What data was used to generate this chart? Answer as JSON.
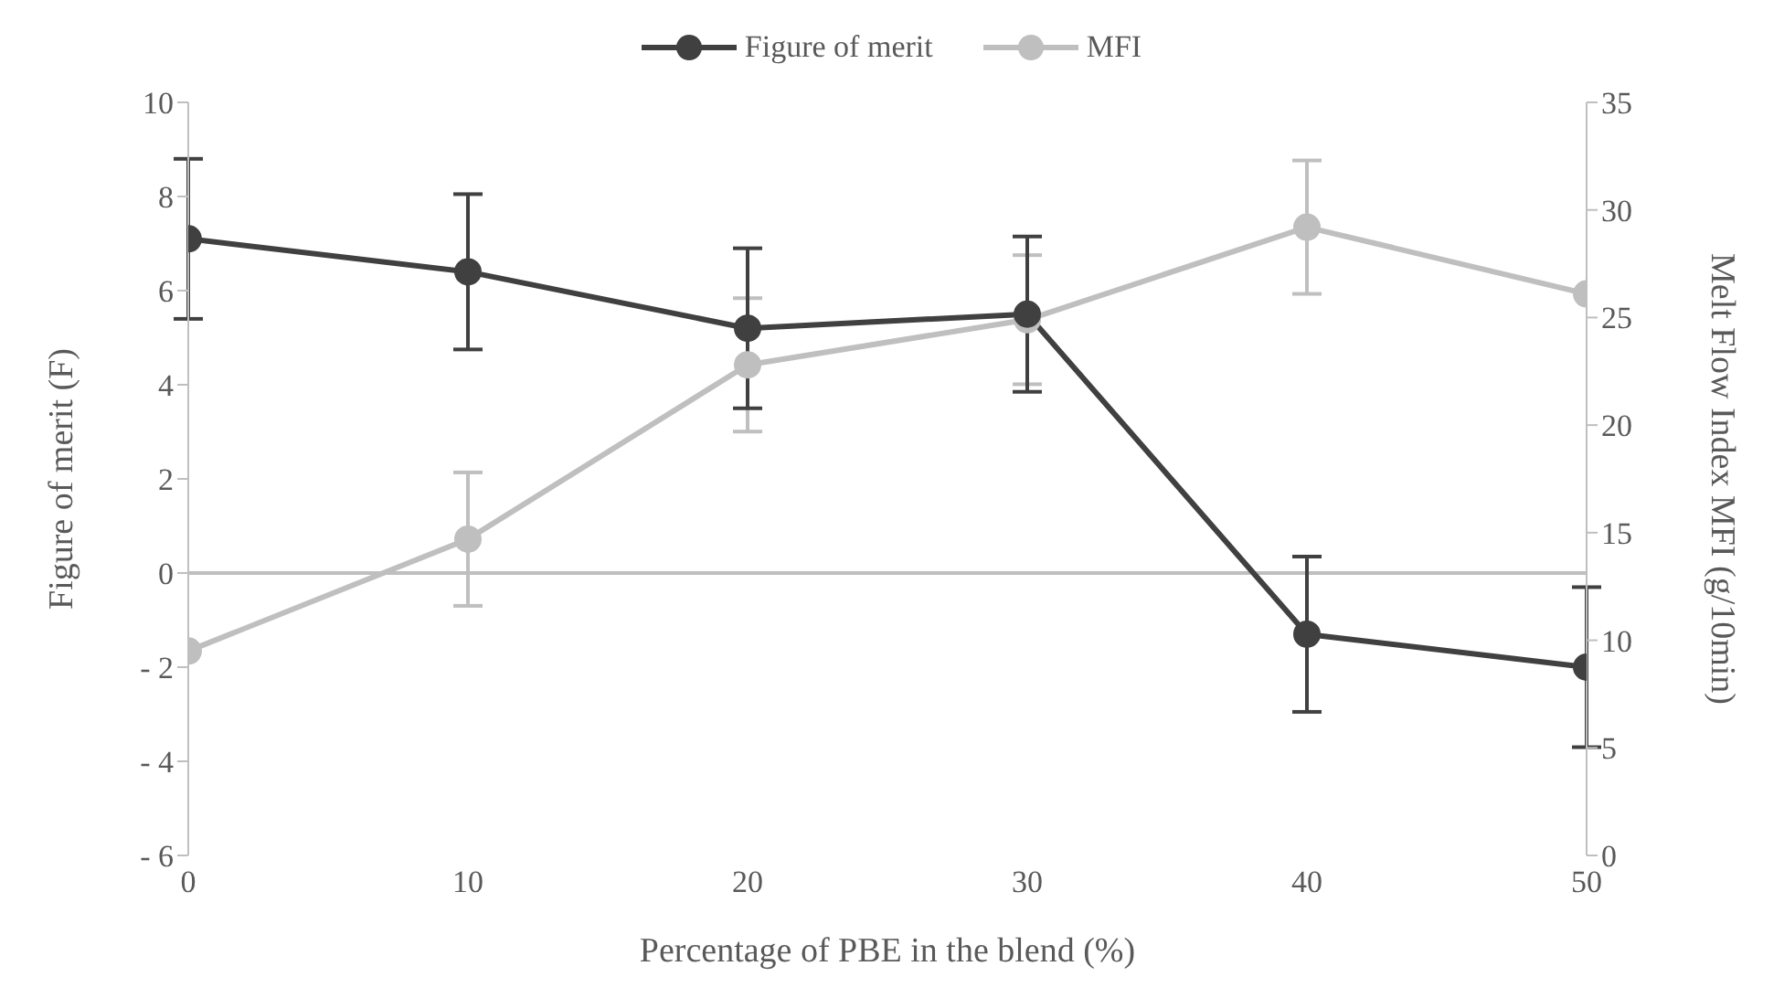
{
  "chart_data": {
    "type": "line",
    "xlabel": "Percentage of PBE in the blend (%)",
    "ylabel": "Figure of merit (F)",
    "y2label": "Melt Flow Index MFI (g/10min)",
    "x": [
      0,
      10,
      20,
      30,
      40,
      50
    ],
    "series": [
      {
        "name": "Figure of merit",
        "color": "#404040",
        "values": [
          7.1,
          6.4,
          5.2,
          5.5,
          -1.3,
          -2.0
        ],
        "errors": [
          1.7,
          1.65,
          1.7,
          1.65,
          1.65,
          1.7
        ]
      },
      {
        "name": "MFI",
        "color": "#bfbfbf",
        "axis": "y2",
        "values": [
          9.5,
          14.7,
          22.8,
          24.9,
          29.2,
          26.1
        ],
        "errors": [
          null,
          3.1,
          3.1,
          3,
          3.1,
          null
        ]
      }
    ],
    "xlim": [
      0,
      50
    ],
    "xticks": [
      0,
      10,
      20,
      30,
      40,
      50
    ],
    "ylim": [
      -6,
      10
    ],
    "yticks": [
      {
        "value": -6,
        "label": "- 6"
      },
      {
        "value": -4,
        "label": "- 4"
      },
      {
        "value": -2,
        "label": "- 2"
      },
      0,
      2,
      4,
      6,
      8,
      10
    ],
    "y2lim": [
      0,
      35
    ],
    "y2ticks": [
      0,
      5,
      10,
      15,
      20,
      25,
      30,
      35
    ],
    "ref_lines": [
      {
        "axis": "y",
        "value": 0,
        "color": "#bfbfbf"
      }
    ],
    "grid": false,
    "legend": "top",
    "marker": "circle",
    "line_style": "solid"
  }
}
